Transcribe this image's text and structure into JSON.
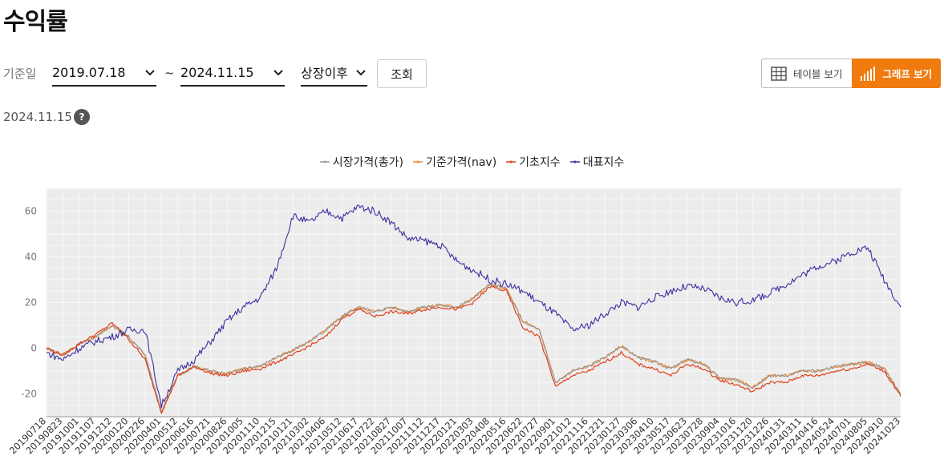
{
  "page": {
    "title": "수익률",
    "date_label": "기준일",
    "start_date": "2019.07.18",
    "tilde": "~",
    "end_date": "2024.11.15",
    "period_select": "상장이후",
    "search_button": "조회",
    "view_table": "테이블 보기",
    "view_graph": "그래프 보기",
    "reference_date": "2024.11.15",
    "help": "?"
  },
  "colors": {
    "accent": "#f07b0f",
    "market_price": "#999999",
    "nav": "#f0882a",
    "base_index": "#e0401c",
    "rep_index": "#3b2fa0"
  },
  "chart_data": {
    "type": "line",
    "title": "",
    "xlabel": "",
    "ylabel": "",
    "ylim": [
      -30,
      70
    ],
    "yticks": [
      -20,
      0,
      20,
      40,
      60
    ],
    "grid": true,
    "legend_position": "top-center",
    "x_ticks": [
      "20190718",
      "20190823",
      "20191001",
      "20191107",
      "20191212",
      "20200120",
      "20200226",
      "20200401",
      "20200512",
      "20200616",
      "20200721",
      "20200826",
      "20201005",
      "20201110",
      "20201215",
      "20210121",
      "20210302",
      "20210406",
      "20210512",
      "20210617",
      "20210722",
      "20210827",
      "20211007",
      "20211112",
      "20211217",
      "20220121",
      "20220303",
      "20220408",
      "20220516",
      "20220622",
      "20220727",
      "20220901",
      "20221012",
      "20221116",
      "20221221",
      "20230127",
      "20230306",
      "20230410",
      "20230517",
      "20230623",
      "20230728",
      "20230904",
      "20231016",
      "20231120",
      "20231226",
      "20240131",
      "20240311",
      "20240416",
      "20240524",
      "20240701",
      "20240805",
      "20240910",
      "20241023"
    ],
    "series": [
      {
        "name": "시장가격(총가)",
        "values": [
          0,
          -3,
          2,
          5,
          10,
          5,
          -3,
          -28,
          -12,
          -8,
          -10,
          -11,
          -9,
          -8,
          -4,
          -1,
          3,
          8,
          14,
          18,
          16,
          18,
          16,
          18,
          19,
          18,
          22,
          28,
          26,
          12,
          8,
          -15,
          -10,
          -8,
          -4,
          1,
          -4,
          -6,
          -9,
          -5,
          -7,
          -13,
          -14,
          -17,
          -12,
          -12,
          -10,
          -10,
          -8,
          -7,
          -6,
          -9,
          -20
        ]
      },
      {
        "name": "기준가격(nav)",
        "values": [
          0,
          -3,
          2,
          5,
          10,
          5,
          -3,
          -28,
          -12,
          -8,
          -10,
          -11,
          -9,
          -8,
          -4,
          -1,
          3,
          8,
          14,
          18,
          16,
          18,
          16,
          18,
          19,
          18,
          22,
          28,
          26,
          12,
          8,
          -15,
          -10,
          -8,
          -4,
          1,
          -4,
          -6,
          -9,
          -5,
          -7,
          -13,
          -14,
          -17,
          -12,
          -12,
          -10,
          -10,
          -8,
          -7,
          -6,
          -9,
          -20
        ]
      },
      {
        "name": "기초지수",
        "values": [
          0,
          -3,
          2,
          6,
          11,
          4,
          -5,
          -28,
          -12,
          -8,
          -11,
          -12,
          -10,
          -9,
          -6,
          -3,
          1,
          5,
          13,
          17,
          14,
          16,
          15,
          17,
          18,
          17,
          20,
          27,
          25,
          9,
          5,
          -17,
          -12,
          -10,
          -6,
          -2,
          -7,
          -9,
          -12,
          -7,
          -9,
          -14,
          -16,
          -19,
          -15,
          -15,
          -12,
          -12,
          -10,
          -9,
          -7,
          -10,
          -21
        ]
      },
      {
        "name": "대표지수",
        "values": [
          -2,
          -5,
          0,
          3,
          5,
          8,
          8,
          -25,
          -10,
          -5,
          3,
          12,
          18,
          22,
          35,
          58,
          55,
          60,
          57,
          62,
          60,
          55,
          48,
          47,
          45,
          38,
          34,
          30,
          28,
          25,
          20,
          15,
          8,
          10,
          15,
          20,
          18,
          22,
          25,
          27,
          26,
          22,
          20,
          21,
          24,
          28,
          32,
          36,
          38,
          42,
          44,
          30,
          18
        ]
      }
    ]
  }
}
